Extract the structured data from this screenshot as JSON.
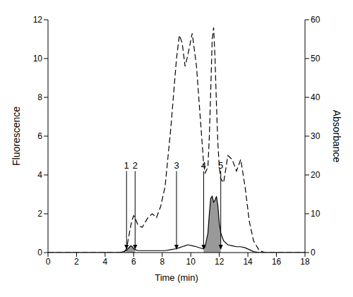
{
  "chart_data": {
    "type": "line",
    "xlabel": "Time (min)",
    "ylabel": "Fluorescence",
    "y2label": "Absorbance",
    "grid": false,
    "x": [
      0,
      5.0,
      5.3,
      5.5,
      5.6,
      5.8,
      5.9,
      6.0,
      6.1,
      6.3,
      6.6,
      7.0,
      7.3,
      7.6,
      7.9,
      8.2,
      8.6,
      9.0,
      9.2,
      9.4,
      9.6,
      9.8,
      10.1,
      10.4,
      10.8,
      10.9,
      11.0,
      11.2,
      11.3,
      11.4,
      11.5,
      11.6,
      11.7,
      11.8,
      11.9,
      12.0,
      12.1,
      12.3,
      12.6,
      12.9,
      13.2,
      13.5,
      13.8,
      14.1,
      14.4,
      14.8,
      15.2,
      18
    ],
    "xlim": [
      0,
      18
    ],
    "xticks": [
      0,
      2,
      4,
      6,
      8,
      10,
      12,
      14,
      16,
      18
    ],
    "ylim": [
      0,
      12
    ],
    "yticks": [
      0,
      2,
      4,
      6,
      8,
      10,
      12
    ],
    "y2lim": [
      0,
      60
    ],
    "y2ticks": [
      0,
      10,
      20,
      30,
      40,
      50,
      60
    ],
    "series": [
      {
        "name": "Fluorescence",
        "color": "#000000",
        "line_style": "solid",
        "axis": "y",
        "values": [
          0,
          0,
          0.05,
          0.1,
          0.2,
          0.35,
          0.3,
          0.2,
          0.15,
          0.1,
          0.1,
          0.1,
          0.1,
          0.1,
          0.1,
          0.1,
          0.15,
          0.2,
          0.25,
          0.3,
          0.35,
          0.4,
          0.35,
          0.3,
          0.2,
          0.2,
          0.3,
          1.0,
          2.0,
          2.8,
          2.9,
          2.6,
          2.7,
          2.9,
          2.4,
          1.5,
          1.0,
          0.6,
          0.4,
          0.35,
          0.3,
          0.3,
          0.25,
          0.15,
          0.05,
          0,
          0,
          0
        ],
        "shaded_ranges": [
          [
            5.5,
            6.1
          ],
          [
            10.9,
            12.1
          ]
        ],
        "shade_color": "#999999"
      },
      {
        "name": "Absorbance",
        "color": "#000000",
        "line_style": "dashed",
        "axis": "y2",
        "values": [
          0,
          0,
          0,
          1,
          3,
          7,
          8.5,
          9.5,
          9,
          7,
          6.5,
          9,
          10,
          9,
          12,
          17,
          32,
          50,
          56,
          54,
          48,
          51,
          56.5,
          48,
          28,
          23,
          20.5,
          22,
          30,
          42,
          55,
          58,
          50,
          38,
          28,
          22,
          19,
          18,
          25,
          24,
          21,
          24,
          17,
          8,
          3,
          0.5,
          0,
          0
        ]
      }
    ],
    "annotations": [
      {
        "x": 5.5,
        "label": "1"
      },
      {
        "x": 6.1,
        "label": "2"
      },
      {
        "x": 9.0,
        "label": "3"
      },
      {
        "x": 10.9,
        "label": "4"
      },
      {
        "x": 12.1,
        "label": "5"
      }
    ]
  }
}
